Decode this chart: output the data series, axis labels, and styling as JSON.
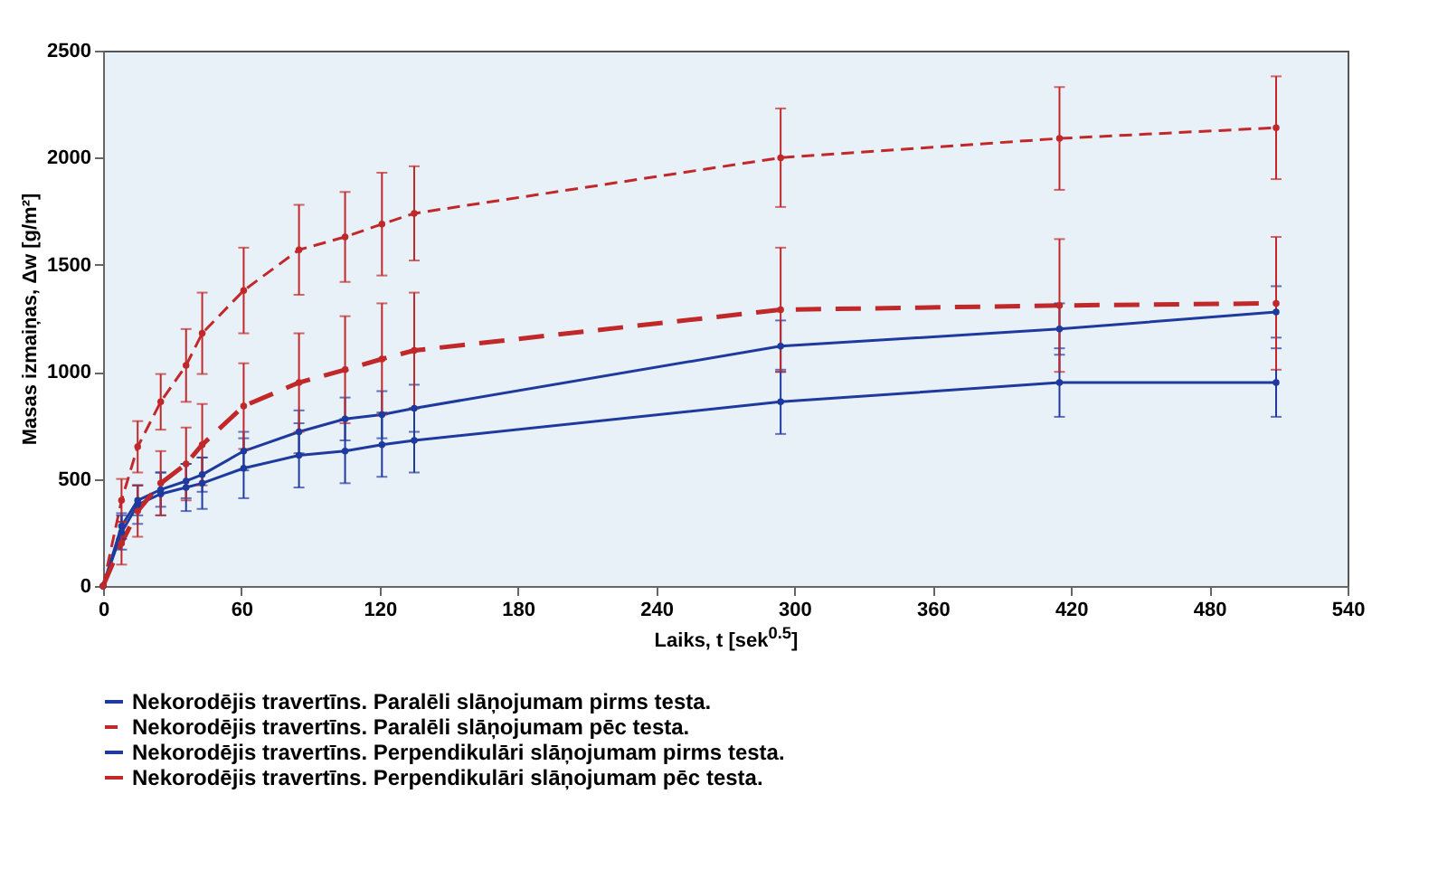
{
  "chart_data": {
    "type": "line",
    "xlabel": "Laiks, t [sek$^{0.5}$]",
    "ylabel": "Masas izmaiņas, Δw [g/m²]",
    "x": [
      0,
      8,
      15,
      25,
      36,
      43,
      61,
      85,
      105,
      121,
      135,
      294,
      415,
      509
    ],
    "xlim": [
      0,
      540
    ],
    "xticks": [
      0,
      60,
      120,
      180,
      240,
      300,
      360,
      420,
      480,
      540
    ],
    "ylim": [
      0,
      2500
    ],
    "yticks": [
      0,
      500,
      1000,
      1500,
      2000,
      2500
    ],
    "grid": false,
    "legend": "bottom",
    "marker": "circle",
    "series": [
      {
        "name": "Nekorodējis travertīns. Paralēli slāņojumam pirms testa.",
        "color": "#1f3a9e",
        "line_style": "solid",
        "values": [
          0,
          280,
          400,
          450,
          490,
          520,
          630,
          720,
          780,
          800,
          830,
          1120,
          1200,
          1280
        ],
        "errors": [
          null,
          60,
          70,
          80,
          80,
          80,
          90,
          100,
          100,
          110,
          110,
          120,
          120,
          120
        ]
      },
      {
        "name": "Nekorodējis travertīns. Paralēli slāņojumam pēc testa.",
        "color": "#c0282a",
        "line_style": "dashed",
        "values": [
          0,
          400,
          650,
          860,
          1030,
          1180,
          1380,
          1570,
          1630,
          1690,
          1740,
          2000,
          2090,
          2140
        ],
        "errors": [
          null,
          100,
          120,
          130,
          170,
          190,
          200,
          210,
          210,
          240,
          220,
          230,
          240,
          240
        ]
      },
      {
        "name": "Nekorodējis travertīns. Perpendikulāri slāņojumam pirms testa.",
        "color": "#1f3a9e",
        "line_style": "solid",
        "values": [
          0,
          250,
          380,
          430,
          460,
          480,
          550,
          610,
          630,
          660,
          680,
          860,
          950,
          950
        ],
        "errors": [
          null,
          80,
          90,
          100,
          110,
          120,
          140,
          150,
          150,
          150,
          150,
          150,
          160,
          160
        ]
      },
      {
        "name": "Nekorodējis travertīns. Perpendikulāri slāņojumam pēc testa.",
        "color": "#c0282a",
        "line_style": "dashed",
        "values": [
          0,
          200,
          350,
          480,
          570,
          660,
          840,
          950,
          1010,
          1060,
          1100,
          1290,
          1310,
          1320
        ],
        "errors": [
          null,
          100,
          120,
          150,
          170,
          190,
          200,
          230,
          250,
          260,
          270,
          290,
          310,
          310
        ]
      }
    ]
  }
}
